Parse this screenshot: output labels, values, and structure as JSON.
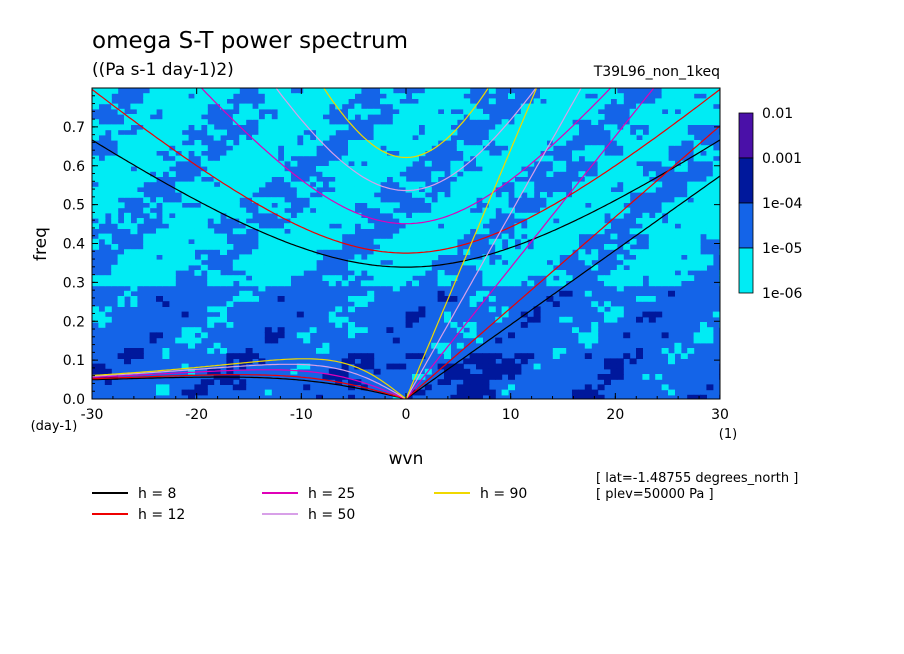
{
  "chart_data": {
    "type": "heatmap",
    "title": "omega S-T power spectrum",
    "subtitle": "((Pa s-1 day-1)2)",
    "run_label": "T39L96_non_1keq",
    "xlabel": "wvn",
    "ylabel": "freq",
    "x_unit": "(1)",
    "y_unit": "(day-1)",
    "xlim": [
      -30,
      30
    ],
    "ylim": [
      0,
      0.8
    ],
    "x_ticks": [
      -30,
      -20,
      -10,
      0,
      10,
      20,
      30
    ],
    "x_tick_labels": [
      "-30",
      "-20",
      "-10",
      "0",
      "10",
      "20",
      "30"
    ],
    "y_ticks": [
      0,
      0.1,
      0.2,
      0.3,
      0.4,
      0.5,
      0.6,
      0.7
    ],
    "y_tick_labels": [
      "0.0",
      "0.1",
      "0.2",
      "0.3",
      "0.4",
      "0.5",
      "0.6",
      "0.7"
    ],
    "colorbar": {
      "levels": [
        "0.01",
        "0.001",
        "1e-04",
        "1e-05",
        "1e-06"
      ],
      "colors": [
        "#4a10a8",
        "#00189c",
        "#1464e8",
        "#00ecf4"
      ]
    },
    "field_description_levels": {
      "low_freq_band_max": 0.3,
      "high_freq_band_min": 0.3
    },
    "series": [
      {
        "name": "h = 8",
        "equivalent_depth": 8,
        "color": "#000000"
      },
      {
        "name": "h = 12",
        "equivalent_depth": 12,
        "color": "#ee0000"
      },
      {
        "name": "h = 25",
        "equivalent_depth": 25,
        "color": "#e000b8"
      },
      {
        "name": "h = 50",
        "equivalent_depth": 50,
        "color": "#d8a0e8"
      },
      {
        "name": "h = 90",
        "equivalent_depth": 90,
        "color": "#f0d800"
      }
    ],
    "annotations": [
      "[ lat=-1.48755 degrees_north ]",
      "[ plev=50000 Pa ]"
    ],
    "grid": false
  }
}
